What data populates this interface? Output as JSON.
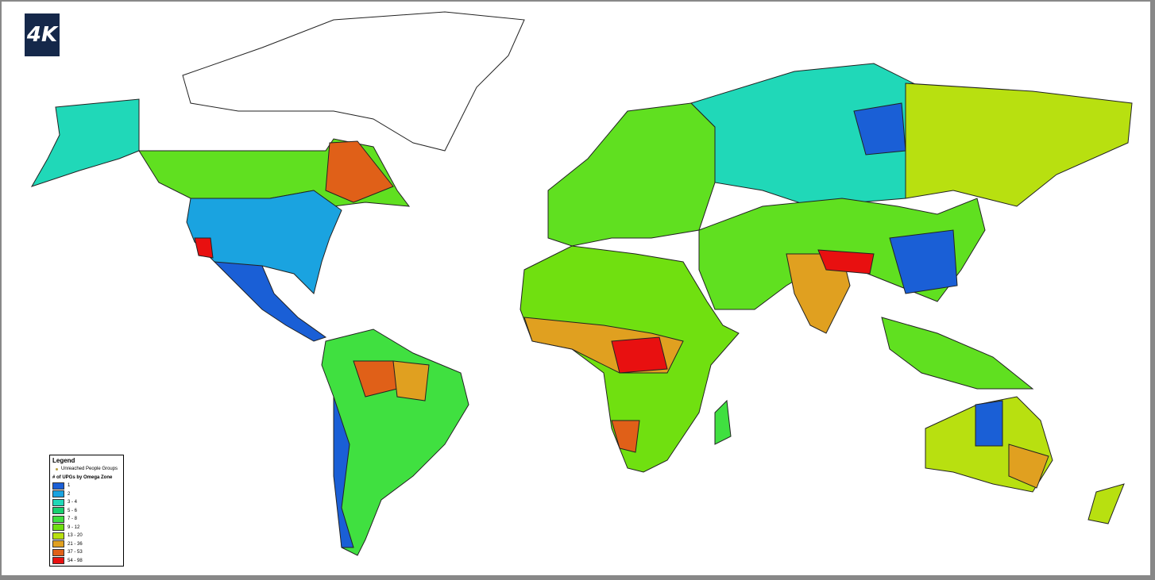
{
  "logo": "4K",
  "legend": {
    "title": "Legend",
    "point_label": "Unreached People Groups",
    "subtitle": "# of UPGs by Omega Zone",
    "items": [
      {
        "label": "1",
        "color": "#1a5fd6"
      },
      {
        "label": "2",
        "color": "#1aa3e0"
      },
      {
        "label": "3 - 4",
        "color": "#20d8b8"
      },
      {
        "label": "5 - 6",
        "color": "#18d070"
      },
      {
        "label": "7 - 8",
        "color": "#40e040"
      },
      {
        "label": "9 - 12",
        "color": "#70e010"
      },
      {
        "label": "13 - 20",
        "color": "#b8e010"
      },
      {
        "label": "21 - 36",
        "color": "#e0a020"
      },
      {
        "label": "37 - 53",
        "color": "#e06018"
      },
      {
        "label": "54 - 98",
        "color": "#e81010"
      }
    ]
  }
}
